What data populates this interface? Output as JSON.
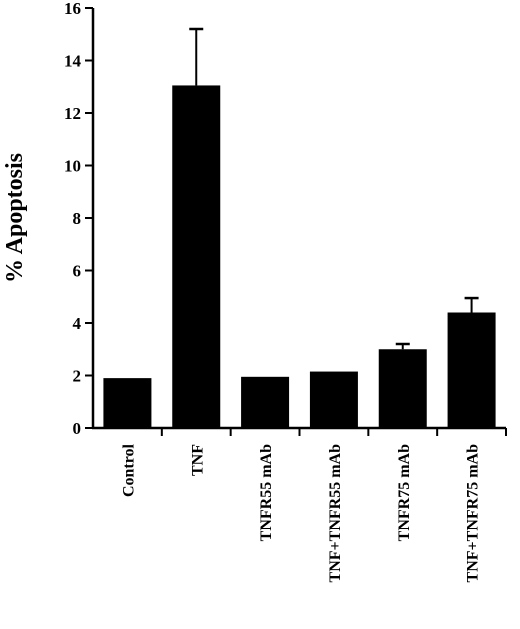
{
  "chart_data": {
    "type": "bar",
    "title": "",
    "xlabel": "",
    "ylabel": "% Apoptosis",
    "ylim": [
      0,
      16
    ],
    "yticks": [
      0,
      2,
      4,
      6,
      8,
      10,
      12,
      14,
      16
    ],
    "grid": false,
    "categories": [
      "Control",
      "TNF",
      "TNFR55 mAb",
      "TNF+TNFR55 mAb",
      "TNFR75 mAb",
      "TNF+TNFR75 mAb"
    ],
    "values": [
      1.9,
      13.05,
      1.95,
      2.15,
      3.0,
      4.4
    ],
    "error_upper": [
      0,
      2.15,
      0,
      0,
      0.2,
      0.55
    ],
    "colors": {
      "bar": "#000000",
      "axis": "#000000",
      "background": "#ffffff"
    }
  }
}
